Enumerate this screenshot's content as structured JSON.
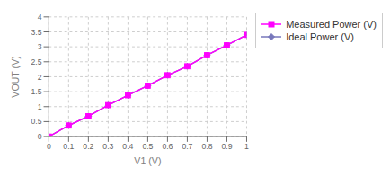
{
  "chart_data": {
    "type": "line",
    "x": [
      0,
      0.1,
      0.2,
      0.3,
      0.4,
      0.5,
      0.6,
      0.7,
      0.8,
      0.9,
      1.0
    ],
    "series": [
      {
        "name": "Measured Power (V)",
        "color": "#FF00FF",
        "marker": "square",
        "values": [
          0,
          0.37,
          0.68,
          1.05,
          1.38,
          1.7,
          2.05,
          2.35,
          2.72,
          3.05,
          3.4
        ]
      },
      {
        "name": "Ideal Power (V)",
        "color": "#7777BB",
        "marker": "diamond",
        "values": [
          0,
          0.37,
          0.68,
          1.05,
          1.38,
          1.7,
          2.05,
          2.35,
          2.72,
          3.05,
          3.4
        ]
      }
    ],
    "xlabel": "V1 (V)",
    "ylabel": "VOUT (V)",
    "xlim": [
      0,
      1.0
    ],
    "ylim": [
      0,
      4.0
    ],
    "xticks": [
      0,
      0.1,
      0.2,
      0.3,
      0.4,
      0.5,
      0.6,
      0.7,
      0.8,
      0.9,
      1
    ],
    "yticks": [
      0,
      0.5,
      1,
      1.5,
      2,
      2.5,
      3,
      3.5,
      4
    ],
    "grid": true,
    "legend": "right"
  }
}
